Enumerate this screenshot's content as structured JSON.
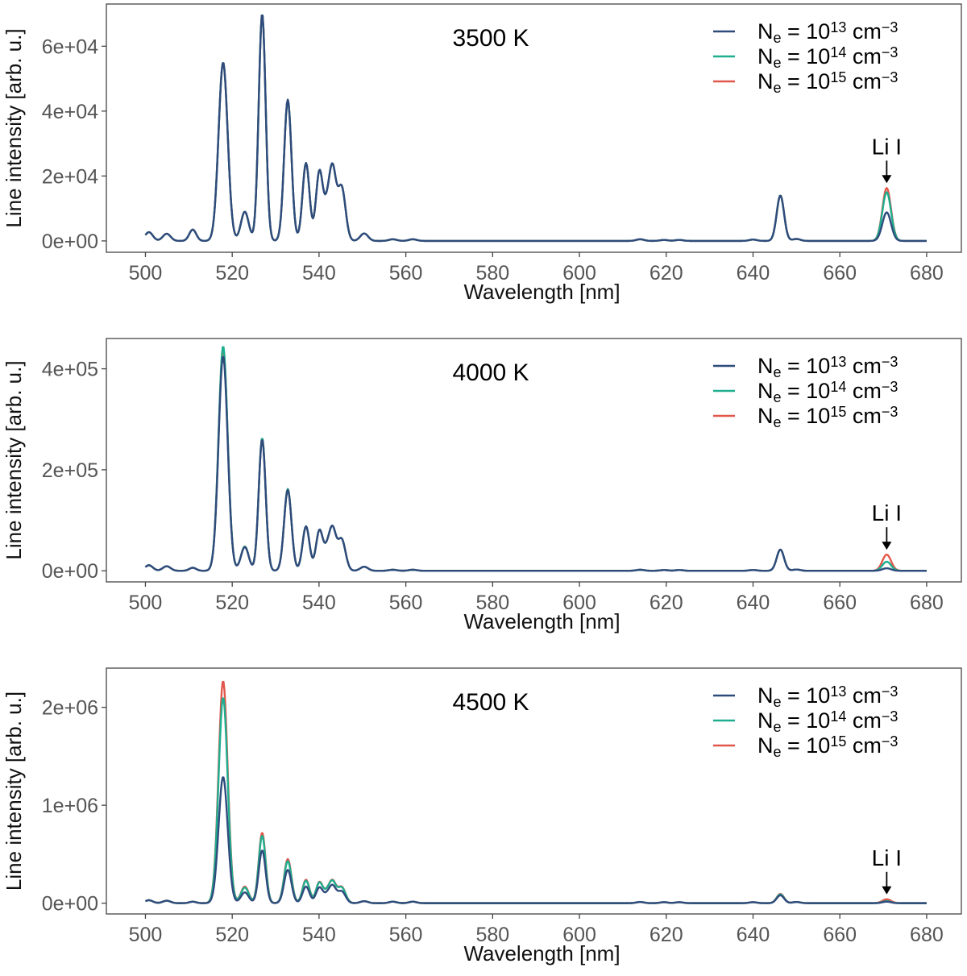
{
  "colors": {
    "series": [
      "#2f4b7c",
      "#1fae8f",
      "#e2574c"
    ],
    "frame": "#444444",
    "tick_label": "#555555"
  },
  "chart_data": [
    {
      "type": "line",
      "title": "3500 K",
      "xlabel": "Wavelength [nm]",
      "ylabel": "Line intensity [arb. u.]",
      "xlim": [
        491,
        688
      ],
      "ylim": [
        -3500,
        73000
      ],
      "xticks": [
        500,
        520,
        540,
        560,
        580,
        600,
        620,
        640,
        660,
        680
      ],
      "xtick_labels": [
        "500",
        "520",
        "540",
        "560",
        "580",
        "600",
        "620",
        "640",
        "660",
        "680"
      ],
      "yticks": [
        0,
        20000,
        40000,
        60000
      ],
      "ytick_labels": [
        "0e+00",
        "2e+04",
        "4e+04",
        "6e+04"
      ],
      "legend": {
        "position": "top-right",
        "entries": [
          {
            "base": "N",
            "sub": "e",
            "mid": " = 10",
            "sup": "13",
            "unit": " cm",
            "unit_sup": "−3"
          },
          {
            "base": "N",
            "sub": "e",
            "mid": " = 10",
            "sup": "14",
            "unit": " cm",
            "unit_sup": "−3"
          },
          {
            "base": "N",
            "sub": "e",
            "mid": " = 10",
            "sup": "15",
            "unit": " cm",
            "unit_sup": "−3"
          }
        ]
      },
      "annotation": {
        "text": "Li I",
        "x": 670.8
      },
      "series": [
        {
          "name": "Ne = 10^13 cm^-3",
          "values": [
            2700,
            2200,
            3500,
            55000,
            9000,
            70000,
            43500,
            24000,
            21500,
            7500,
            21500,
            16500,
            2300,
            500,
            500,
            500,
            300,
            300,
            400,
            14000,
            600,
            8800
          ]
        },
        {
          "name": "Ne = 10^14 cm^-3",
          "values": [
            2700,
            2200,
            3500,
            55000,
            9000,
            70000,
            43500,
            24000,
            21500,
            7500,
            21500,
            16500,
            2300,
            500,
            500,
            500,
            300,
            300,
            400,
            14000,
            600,
            15000
          ]
        },
        {
          "name": "Ne = 10^15 cm^-3",
          "values": [
            2700,
            2200,
            3500,
            55000,
            9000,
            70000,
            43500,
            24000,
            21500,
            7500,
            21500,
            16500,
            2300,
            500,
            500,
            500,
            300,
            300,
            400,
            14000,
            600,
            16300
          ]
        }
      ]
    },
    {
      "type": "line",
      "title": "4000 K",
      "xlabel": "Wavelength [nm]",
      "ylabel": "Line intensity [arb. u.]",
      "xlim": [
        491,
        688
      ],
      "ylim": [
        -22000,
        460000
      ],
      "xticks": [
        500,
        520,
        540,
        560,
        580,
        600,
        620,
        640,
        660,
        680
      ],
      "xtick_labels": [
        "500",
        "520",
        "540",
        "560",
        "580",
        "600",
        "620",
        "640",
        "660",
        "680"
      ],
      "yticks": [
        0,
        200000,
        400000
      ],
      "ytick_labels": [
        "0e+00",
        "2e+05",
        "4e+05"
      ],
      "legend": {
        "position": "top-right",
        "entries": [
          {
            "base": "N",
            "sub": "e",
            "mid": " = 10",
            "sup": "13",
            "unit": " cm",
            "unit_sup": "−3"
          },
          {
            "base": "N",
            "sub": "e",
            "mid": " = 10",
            "sup": "14",
            "unit": " cm",
            "unit_sup": "−3"
          },
          {
            "base": "N",
            "sub": "e",
            "mid": " = 10",
            "sup": "15",
            "unit": " cm",
            "unit_sup": "−3"
          }
        ]
      },
      "annotation": {
        "text": "Li I",
        "x": 670.8
      },
      "series": [
        {
          "name": "Ne = 10^13 cm^-3",
          "values": [
            11000,
            9000,
            6000,
            425000,
            47000,
            260000,
            160000,
            88000,
            80000,
            30000,
            80000,
            62000,
            8000,
            2000,
            2000,
            2000,
            1500,
            1500,
            1500,
            42000,
            2500,
            5000
          ]
        },
        {
          "name": "Ne = 10^14 cm^-3",
          "values": [
            11000,
            9000,
            6000,
            445000,
            48000,
            263000,
            162000,
            88000,
            80000,
            30000,
            80000,
            62000,
            8000,
            2000,
            2000,
            2000,
            1500,
            1500,
            1500,
            42000,
            2500,
            18000
          ]
        },
        {
          "name": "Ne = 10^15 cm^-3",
          "values": [
            11000,
            9000,
            6000,
            440000,
            48000,
            263000,
            162000,
            88000,
            80000,
            30000,
            80000,
            62000,
            8000,
            2000,
            2000,
            2000,
            1500,
            1500,
            1500,
            42000,
            2500,
            32000
          ]
        }
      ]
    },
    {
      "type": "line",
      "title": "4500 K",
      "xlabel": "Wavelength [nm]",
      "ylabel": "Line intensity [arb. u.]",
      "xlim": [
        491,
        688
      ],
      "ylim": [
        -110000,
        2400000
      ],
      "xticks": [
        500,
        520,
        540,
        560,
        580,
        600,
        620,
        640,
        660,
        680
      ],
      "xtick_labels": [
        "500",
        "520",
        "540",
        "560",
        "580",
        "600",
        "620",
        "640",
        "660",
        "680"
      ],
      "yticks": [
        0,
        1000000,
        2000000
      ],
      "ytick_labels": [
        "0e+00",
        "1e+06",
        "2e+06"
      ],
      "legend": {
        "position": "top-right",
        "entries": [
          {
            "base": "N",
            "sub": "e",
            "mid": " = 10",
            "sup": "13",
            "unit": " cm",
            "unit_sup": "−3"
          },
          {
            "base": "N",
            "sub": "e",
            "mid": " = 10",
            "sup": "14",
            "unit": " cm",
            "unit_sup": "−3"
          },
          {
            "base": "N",
            "sub": "e",
            "mid": " = 10",
            "sup": "15",
            "unit": " cm",
            "unit_sup": "−3"
          }
        ]
      },
      "annotation": {
        "text": "Li I",
        "x": 670.8
      },
      "series": [
        {
          "name": "Ne = 10^13 cm^-3",
          "values": [
            30000,
            25000,
            15000,
            1290000,
            110000,
            540000,
            340000,
            170000,
            160000,
            60000,
            170000,
            120000,
            20000,
            15000,
            15000,
            12000,
            10000,
            10000,
            10000,
            80000,
            12000,
            15000
          ]
        },
        {
          "name": "Ne = 10^14 cm^-3",
          "values": [
            30000,
            25000,
            15000,
            2100000,
            160000,
            690000,
            430000,
            230000,
            210000,
            80000,
            210000,
            160000,
            20000,
            15000,
            15000,
            12000,
            10000,
            10000,
            10000,
            90000,
            12000,
            20000
          ]
        },
        {
          "name": "Ne = 10^15 cm^-3",
          "values": [
            30000,
            25000,
            15000,
            2270000,
            170000,
            720000,
            450000,
            240000,
            215000,
            80000,
            215000,
            165000,
            20000,
            15000,
            15000,
            12000,
            10000,
            10000,
            10000,
            95000,
            12000,
            40000
          ]
        }
      ]
    }
  ]
}
